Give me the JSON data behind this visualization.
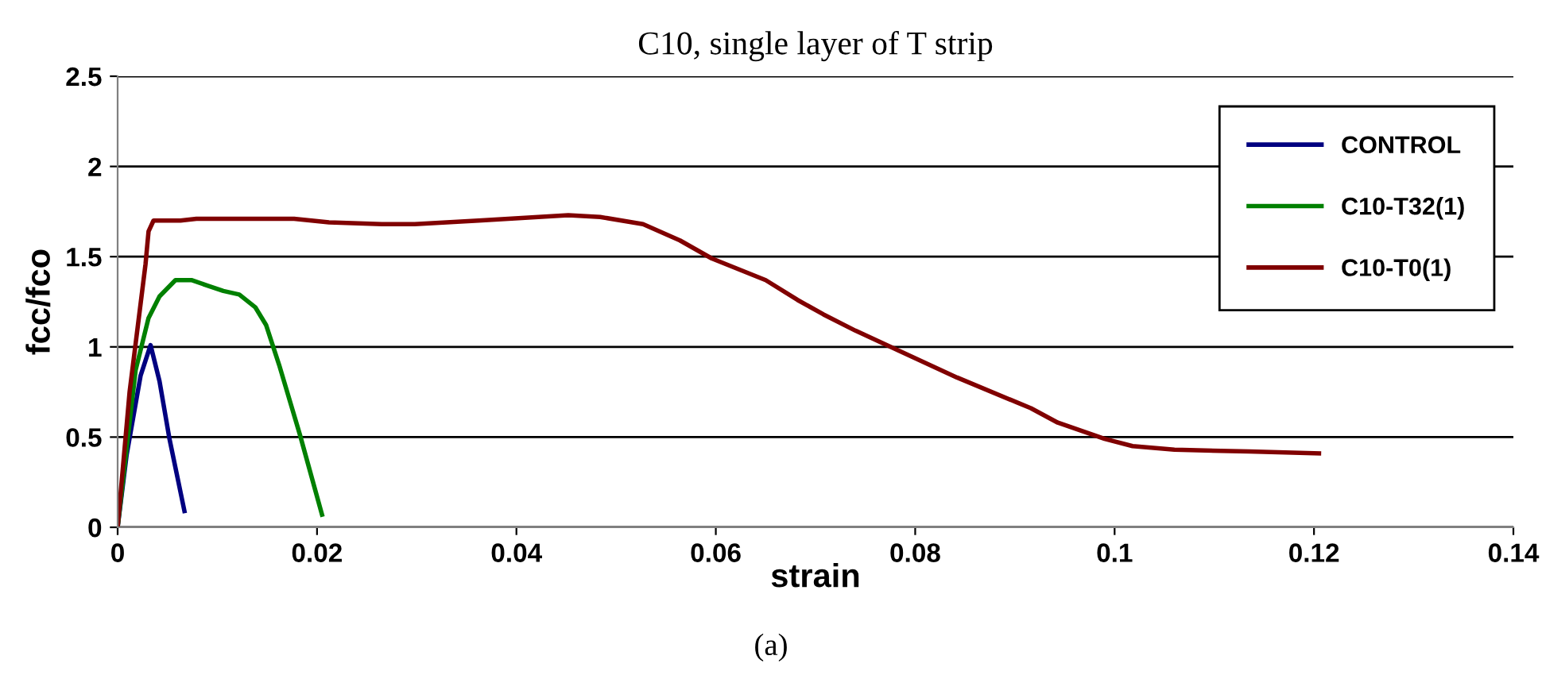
{
  "chart_data": {
    "type": "line",
    "title": "C10, single layer of T strip",
    "xlabel": "strain",
    "ylabel": "fcc/fco",
    "annotations": [
      "(a)"
    ],
    "xlim": [
      0,
      0.14
    ],
    "xticks": [
      0,
      0.02,
      0.04,
      0.06,
      0.08,
      0.1,
      0.12,
      0.14
    ],
    "ylim": [
      0,
      2.5
    ],
    "yticks": [
      0,
      0.5,
      1,
      1.5,
      2,
      2.5
    ],
    "grid": "y",
    "legend": "top right",
    "marker": "none",
    "line_style": "solid",
    "series": [
      {
        "name": "CONTROL",
        "color": "#000080",
        "x": [
          0,
          0.0009,
          0.0023,
          0.0033,
          0.0042,
          0.0052,
          0.0067
        ],
        "values": [
          0,
          0.4,
          0.84,
          1.01,
          0.81,
          0.49,
          0.09
        ]
      },
      {
        "name": "C10-T32(1)",
        "color": "#008000",
        "x": [
          0,
          0.0007,
          0.0018,
          0.0031,
          0.0042,
          0.0058,
          0.0074,
          0.009,
          0.0106,
          0.0122,
          0.0138,
          0.0149,
          0.0162,
          0.0183,
          0.0205
        ],
        "values": [
          0,
          0.34,
          0.87,
          1.16,
          1.28,
          1.37,
          1.37,
          1.34,
          1.31,
          1.29,
          1.22,
          1.12,
          0.9,
          0.51,
          0.07
        ]
      },
      {
        "name": "C10-T0(1)",
        "color": "#800000",
        "x": [
          0,
          0.0012,
          0.0028,
          0.0031,
          0.0036,
          0.0063,
          0.0079,
          0.0177,
          0.0212,
          0.0265,
          0.0298,
          0.0362,
          0.0452,
          0.0484,
          0.0527,
          0.0564,
          0.0596,
          0.065,
          0.0682,
          0.0708,
          0.074,
          0.0783,
          0.0842,
          0.0916,
          0.0943,
          0.099,
          0.1018,
          0.106,
          0.1135,
          0.1205
        ],
        "values": [
          0,
          0.75,
          1.46,
          1.64,
          1.7,
          1.7,
          1.71,
          1.71,
          1.69,
          1.68,
          1.68,
          1.7,
          1.73,
          1.72,
          1.68,
          1.59,
          1.49,
          1.37,
          1.26,
          1.18,
          1.09,
          0.98,
          0.83,
          0.66,
          0.58,
          0.49,
          0.45,
          0.43,
          0.42,
          0.41
        ]
      }
    ]
  }
}
